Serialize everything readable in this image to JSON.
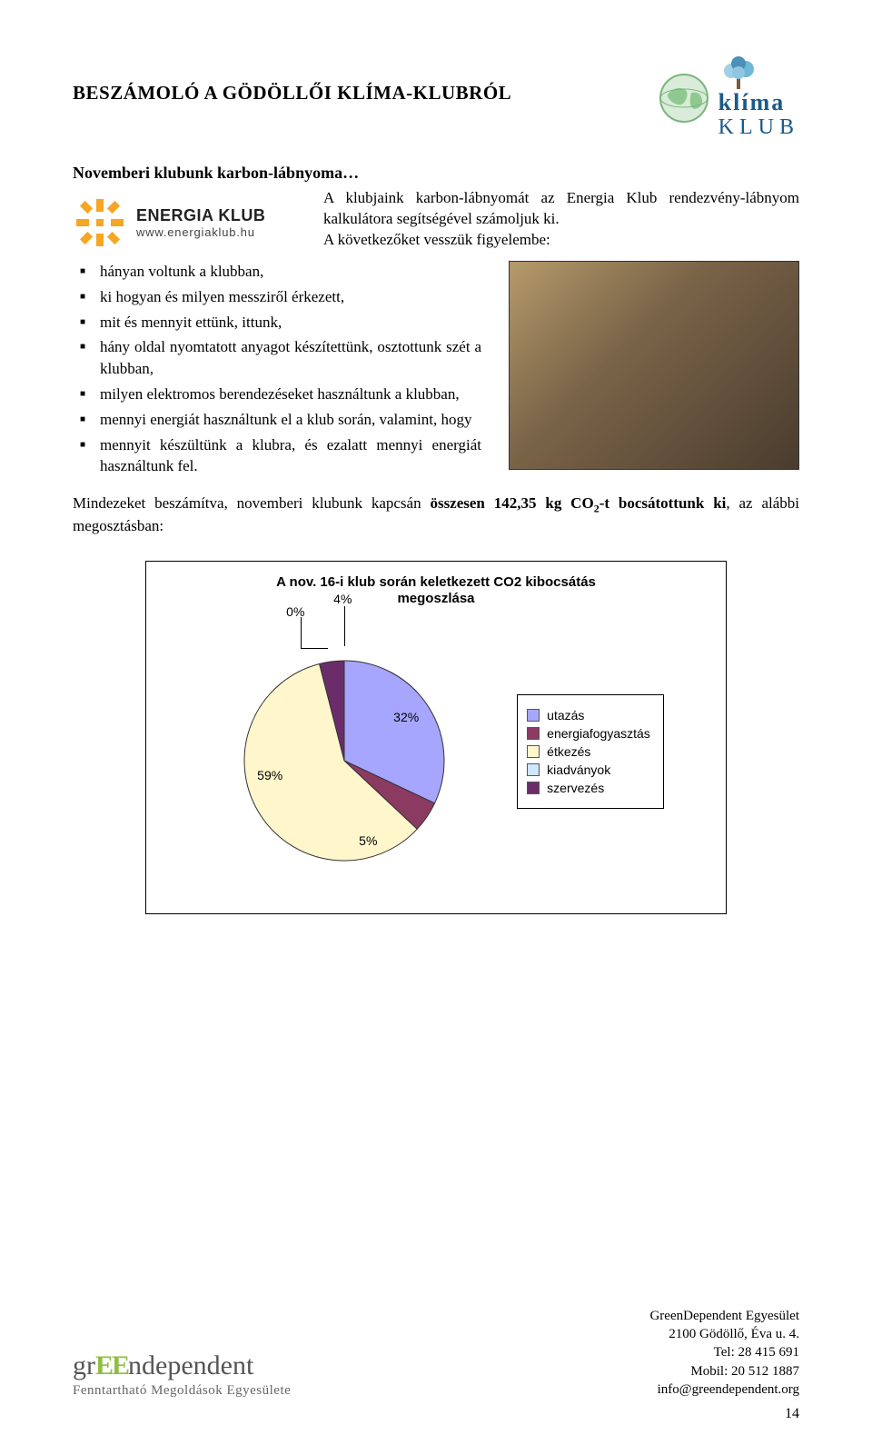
{
  "header": {
    "title": "BESZÁMOLÓ A GÖDÖLLŐI KLÍMA-KLUBRÓL",
    "klima_brand_top": "klíma",
    "klima_brand_bottom": "KLUB"
  },
  "subtitle": "Novemberi klubunk karbon-lábnyoma…",
  "ek_logo": {
    "name": "ENERGIA KLUB",
    "url": "www.energiaklub.hu"
  },
  "intro": {
    "line1": "A klubjaink karbon-lábnyomát az Energia Klub rendezvény-lábnyom kalkulátora segítségével számoljuk ki.",
    "line2": "A következőket vesszük figyelembe:"
  },
  "bullets": [
    "hányan voltunk a klubban,",
    "ki hogyan és milyen messziről érkezett,",
    "mit és mennyit ettünk, ittunk,",
    "hány oldal nyomtatott anyagot készítettünk, osztottunk szét a klubban,",
    "milyen elektromos berendezéseket használtunk a klubban,",
    "mennyi energiát használtunk el a klub során, valamint, hogy",
    "mennyit készültünk a klubra, és ezalatt mennyi energiát használtunk fel."
  ],
  "summary": {
    "pre": "Mindezeket beszámítva, novemberi klubunk kapcsán ",
    "bold_a": "összesen 142,35 kg CO",
    "bold_sub": "2",
    "bold_b": "-t bocsátottunk ki",
    "post": ", az alábbi megosztásban:"
  },
  "chart": {
    "title_line1": "A nov. 16-i klub során keletkezett CO2 kibocsátás",
    "title_line2": "megoszlása",
    "type": "pie",
    "background_color": "#ffffff",
    "border_color": "#000000",
    "label_fontsize": 14,
    "title_fontsize": 15,
    "slices": [
      {
        "key": "utazas",
        "label": "utazás",
        "value": 32,
        "pct_label": "32%",
        "color": "#a6a6ff",
        "border": "#333333"
      },
      {
        "key": "energiafogyasztas",
        "label": "energiafogyasztás",
        "value": 5,
        "pct_label": "5%",
        "color": "#8b3a62",
        "border": "#333333"
      },
      {
        "key": "etkezes",
        "label": "étkezés",
        "value": 59,
        "pct_label": "59%",
        "color": "#fff6cc",
        "border": "#333333"
      },
      {
        "key": "kiadvanyok",
        "label": "kiadványok",
        "value": 0,
        "pct_label": "0%",
        "color": "#cfe6ff",
        "border": "#333333"
      },
      {
        "key": "szervezes",
        "label": "szervezés",
        "value": 4,
        "pct_label": "4%",
        "color": "#6a2d6a",
        "border": "#333333"
      }
    ],
    "pct_label_0": "0%",
    "pct_label_4": "4%",
    "legend_border": "#000000"
  },
  "footer": {
    "gd_logo": "grEEndependent",
    "gd_sub": "Fenntartható Megoldások Egyesülete",
    "contact": {
      "l1": "GreenDependent Egyesület",
      "l2": "2100 Gödöllő, Éva u. 4.",
      "l3": "Tel: 28 415 691",
      "l4": "Mobil: 20 512 1887",
      "l5": "info@greendependent.org"
    }
  },
  "page_number": "14"
}
